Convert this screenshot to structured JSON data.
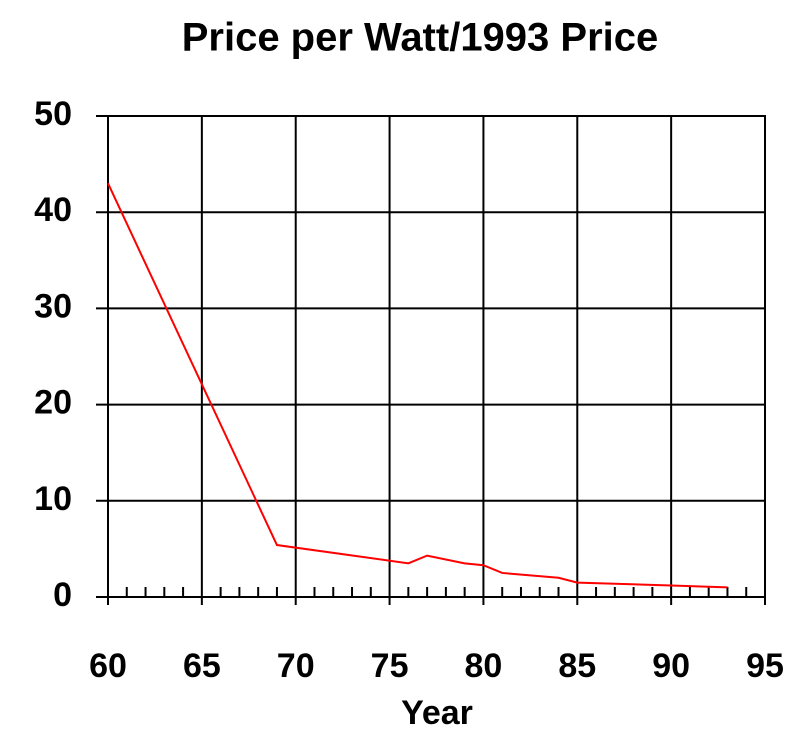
{
  "chart_data": {
    "type": "line",
    "title": "Price per Watt/1993 Price",
    "xlabel": "Year",
    "x": [
      60,
      69,
      76,
      77,
      79,
      80,
      81,
      84,
      85,
      90,
      93
    ],
    "series": [
      {
        "color": "#ff0000",
        "values": [
          43,
          5.4,
          3.5,
          4.3,
          3.5,
          3.3,
          2.5,
          2.0,
          1.5,
          1.2,
          1.0
        ]
      }
    ],
    "xlim": [
      60,
      95
    ],
    "xticks": [
      60,
      65,
      70,
      75,
      80,
      85,
      90,
      95
    ],
    "ylim": [
      0,
      50
    ],
    "yticks": [
      0,
      10,
      20,
      30,
      40,
      50
    ],
    "grid": true
  }
}
